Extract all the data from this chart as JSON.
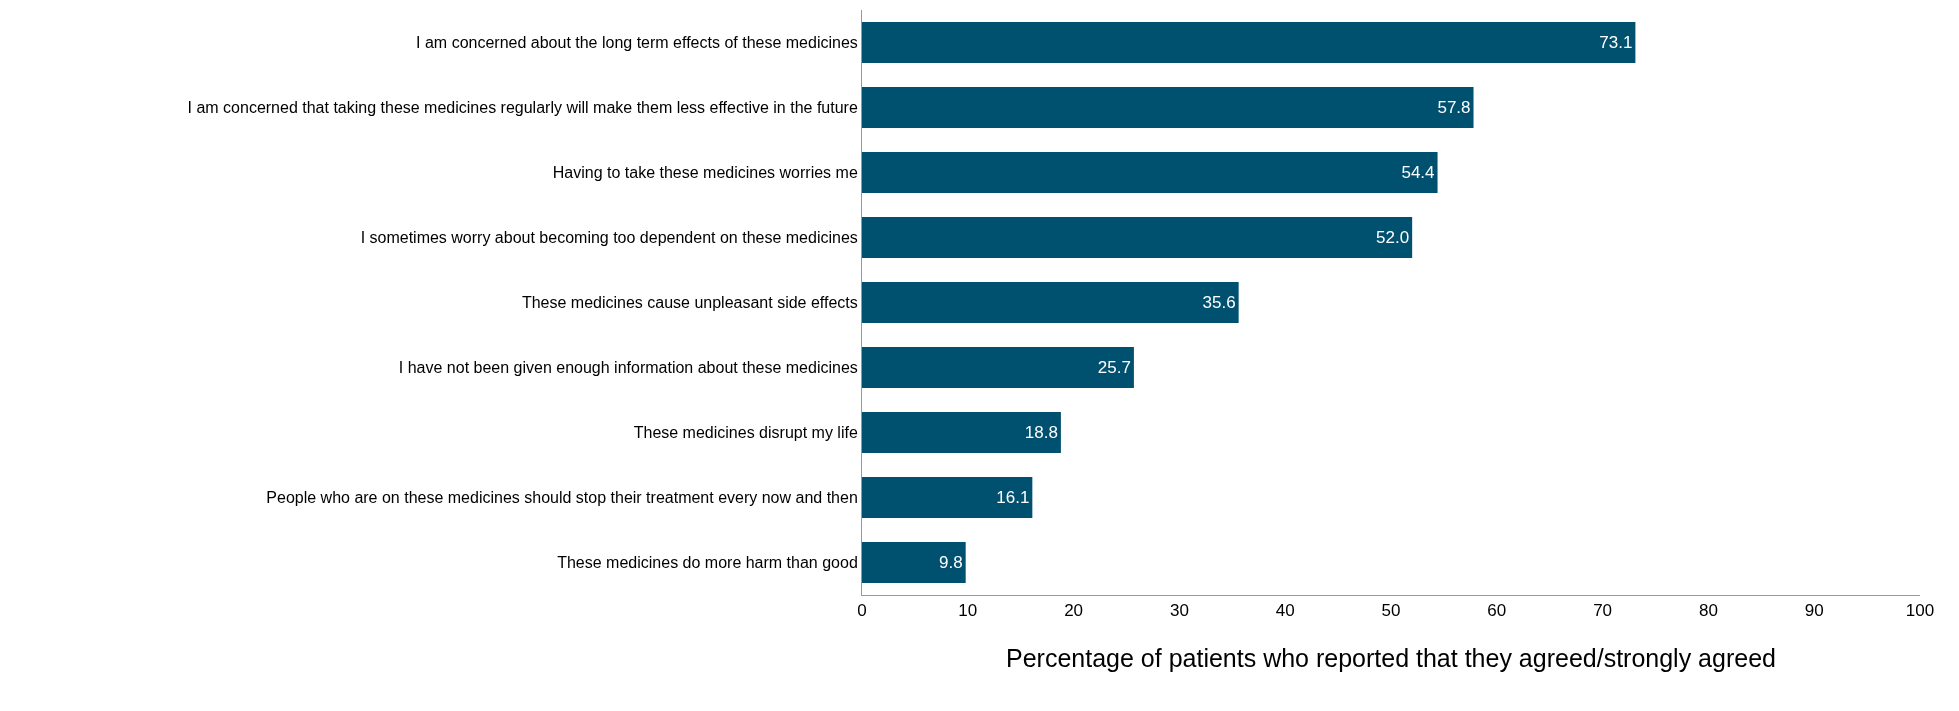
{
  "chart_data": {
    "type": "bar",
    "orientation": "horizontal",
    "xlabel": "Percentage of patients who reported that they agreed/strongly agreed",
    "categories": [
      "I am concerned about the long term effects of these medicines",
      "I am concerned that taking these medicines regularly will make them less effective in the future",
      "Having to take these medicines worries me",
      "I sometimes worry about becoming too dependent on these medicines",
      "These medicines cause unpleasant side effects",
      "I have not been given enough information about these medicines",
      "These medicines disrupt my life",
      "People who are on these medicines should stop their treatment every now and then",
      "These medicines do more harm than good"
    ],
    "values": [
      73.1,
      57.8,
      54.4,
      52.0,
      35.6,
      25.7,
      18.8,
      16.1,
      9.8
    ],
    "value_labels": [
      "73.1",
      "57.8",
      "54.4",
      "52.0",
      "35.6",
      "25.7",
      "18.8",
      "16.1",
      "9.8"
    ],
    "color": "#00506f",
    "xlim": [
      0,
      100
    ],
    "xticks": [
      0,
      10,
      20,
      30,
      40,
      50,
      60,
      70,
      80,
      90,
      100
    ],
    "grid": false,
    "legend": false
  }
}
